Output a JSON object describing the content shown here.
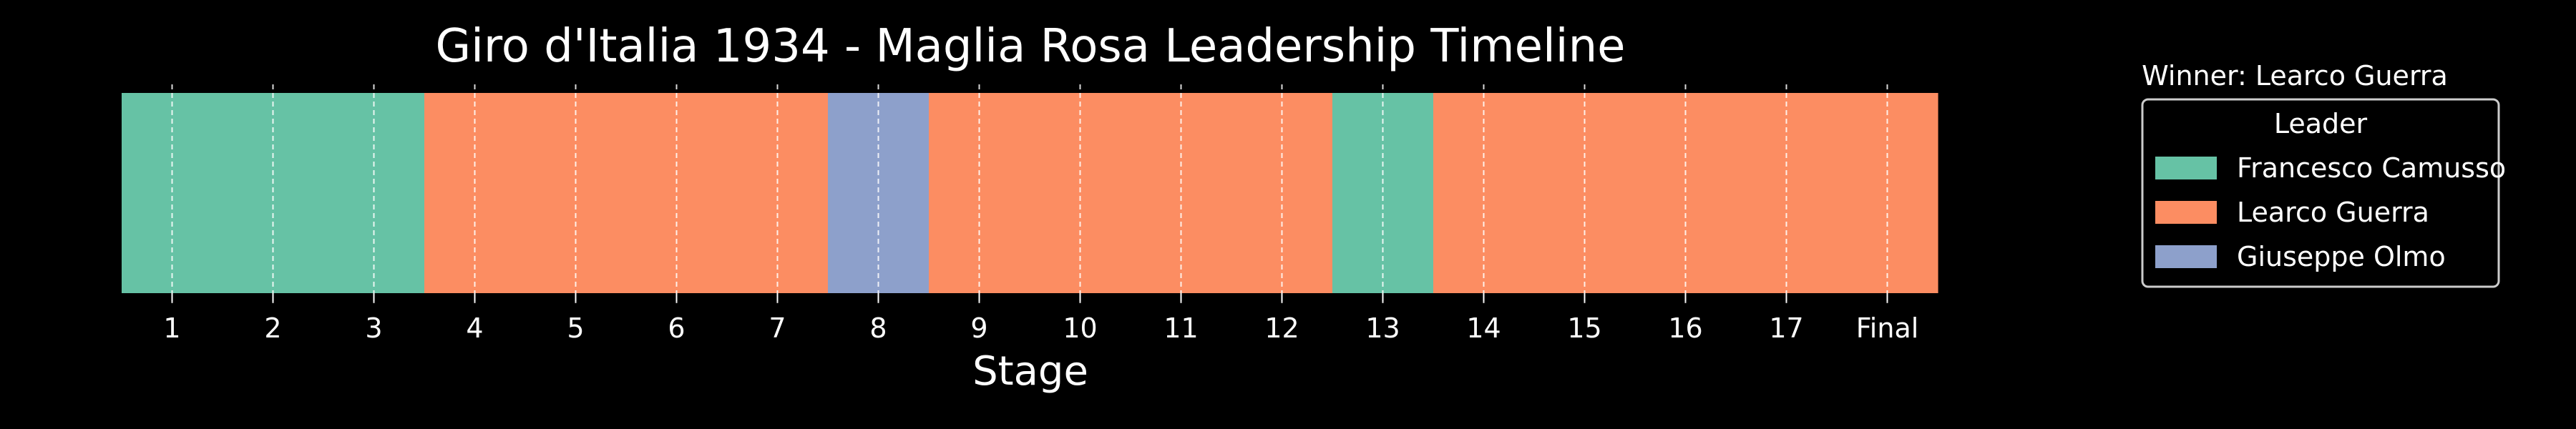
{
  "chart_data": {
    "type": "bar",
    "title": "Giro d'Italia 1934 - Maglia Rosa Leadership Timeline",
    "xlabel": "Stage",
    "ylabel": "",
    "categories": [
      "1",
      "2",
      "3",
      "4",
      "5",
      "6",
      "7",
      "8",
      "9",
      "10",
      "11",
      "12",
      "13",
      "14",
      "15",
      "16",
      "17",
      "Final"
    ],
    "leaders": [
      "Francesco Camusso",
      "Francesco Camusso",
      "Francesco Camusso",
      "Learco Guerra",
      "Learco Guerra",
      "Learco Guerra",
      "Learco Guerra",
      "Giuseppe Olmo",
      "Learco Guerra",
      "Learco Guerra",
      "Learco Guerra",
      "Learco Guerra",
      "Francesco Camusso",
      "Learco Guerra",
      "Learco Guerra",
      "Learco Guerra",
      "Learco Guerra",
      "Learco Guerra"
    ],
    "series": [
      {
        "name": "Francesco Camusso",
        "color": "#66c2a5"
      },
      {
        "name": "Learco Guerra",
        "color": "#fc8d62"
      },
      {
        "name": "Giuseppe Olmo",
        "color": "#8da0cb"
      }
    ],
    "legend": {
      "title": "Leader",
      "placement": "right",
      "caption": "Winner: Learco Guerra"
    },
    "grid": {
      "x": true,
      "y": false,
      "style": "dashed"
    },
    "background": "#000000"
  }
}
